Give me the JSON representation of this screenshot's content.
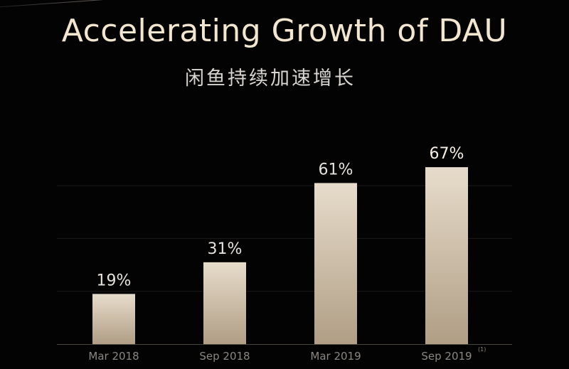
{
  "header": {
    "title": "Accelerating Growth of DAU",
    "subtitle": "闲鱼持续加速增长"
  },
  "chart_data": {
    "type": "bar",
    "title": "Accelerating Growth of DAU",
    "subtitle": "闲鱼持续加速增长",
    "categories": [
      "Mar 2018",
      "Sep 2018",
      "Mar 2019",
      "Sep 2019"
    ],
    "values": [
      19,
      31,
      61,
      67
    ],
    "value_labels": [
      "19%",
      "31%",
      "61%",
      "67%"
    ],
    "footnotes": [
      "",
      "",
      "",
      "(1)"
    ],
    "ylim": [
      0,
      70
    ],
    "grid": true,
    "colors": {
      "bar_top": "#e7dccb",
      "bar_bottom": "#b09e85",
      "background": "#040303",
      "title": "#f3e6cf"
    }
  }
}
